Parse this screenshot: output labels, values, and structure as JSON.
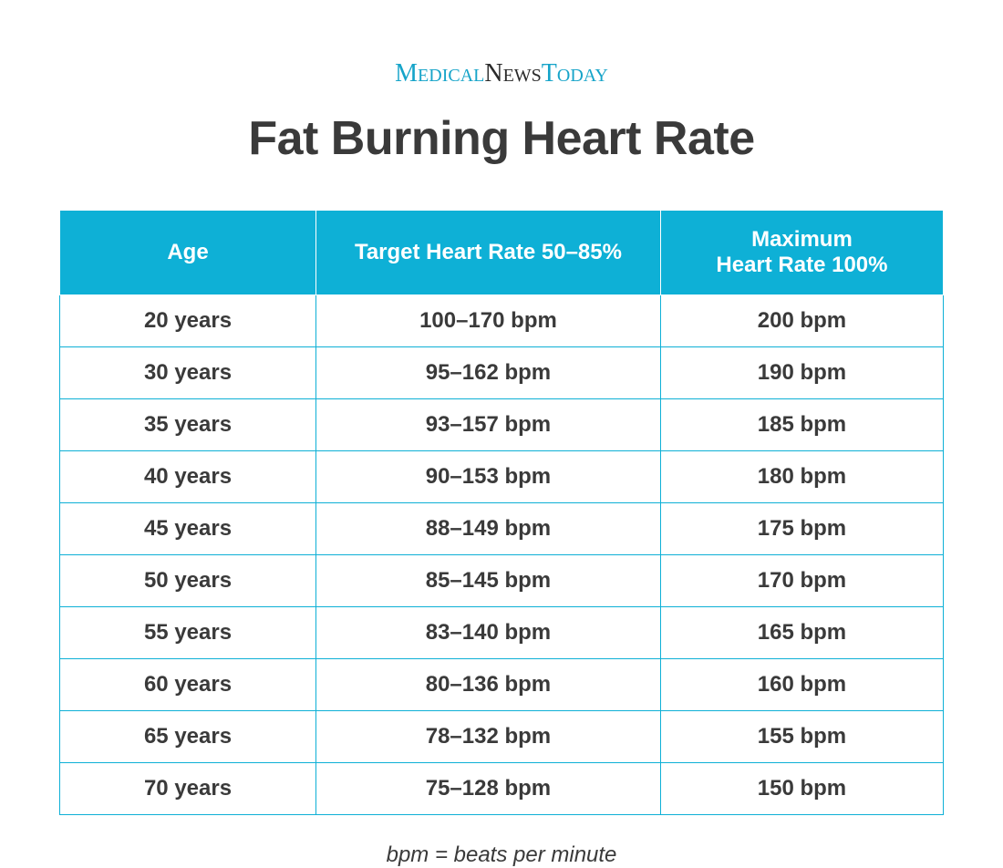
{
  "brand": {
    "part1": "Medical",
    "part2": "News",
    "part3": "Today"
  },
  "title": "Fat Burning Heart Rate",
  "table": {
    "header_bg": "#0eb0d6",
    "header_fg": "#ffffff",
    "cell_bg": "#ffffff",
    "cell_fg": "#3a3a3a",
    "border_color": "#0eb0d6",
    "header_fontsize": 24,
    "cell_fontsize": 24,
    "columns": [
      {
        "key": "age",
        "label": "Age",
        "width_pct": 29
      },
      {
        "key": "target",
        "label": "Target Heart Rate 50–85%",
        "width_pct": 39
      },
      {
        "key": "max",
        "label_line1": "Maximum",
        "label_line2": "Heart Rate 100%",
        "width_pct": 32
      }
    ],
    "rows": [
      {
        "age": "20 years",
        "target": "100–170 bpm",
        "max": "200 bpm"
      },
      {
        "age": "30 years",
        "target": "95–162 bpm",
        "max": "190 bpm"
      },
      {
        "age": "35 years",
        "target": "93–157 bpm",
        "max": "185 bpm"
      },
      {
        "age": "40 years",
        "target": "90–153 bpm",
        "max": "180 bpm"
      },
      {
        "age": "45 years",
        "target": "88–149 bpm",
        "max": "175 bpm"
      },
      {
        "age": "50 years",
        "target": "85–145 bpm",
        "max": "170 bpm"
      },
      {
        "age": "55 years",
        "target": "83–140 bpm",
        "max": "165 bpm"
      },
      {
        "age": "60 years",
        "target": "80–136 bpm",
        "max": "160 bpm"
      },
      {
        "age": "65 years",
        "target": "78–132 bpm",
        "max": "155 bpm"
      },
      {
        "age": "70 years",
        "target": "75–128 bpm",
        "max": "150 bpm"
      }
    ]
  },
  "footnote": "bpm = beats per minute"
}
